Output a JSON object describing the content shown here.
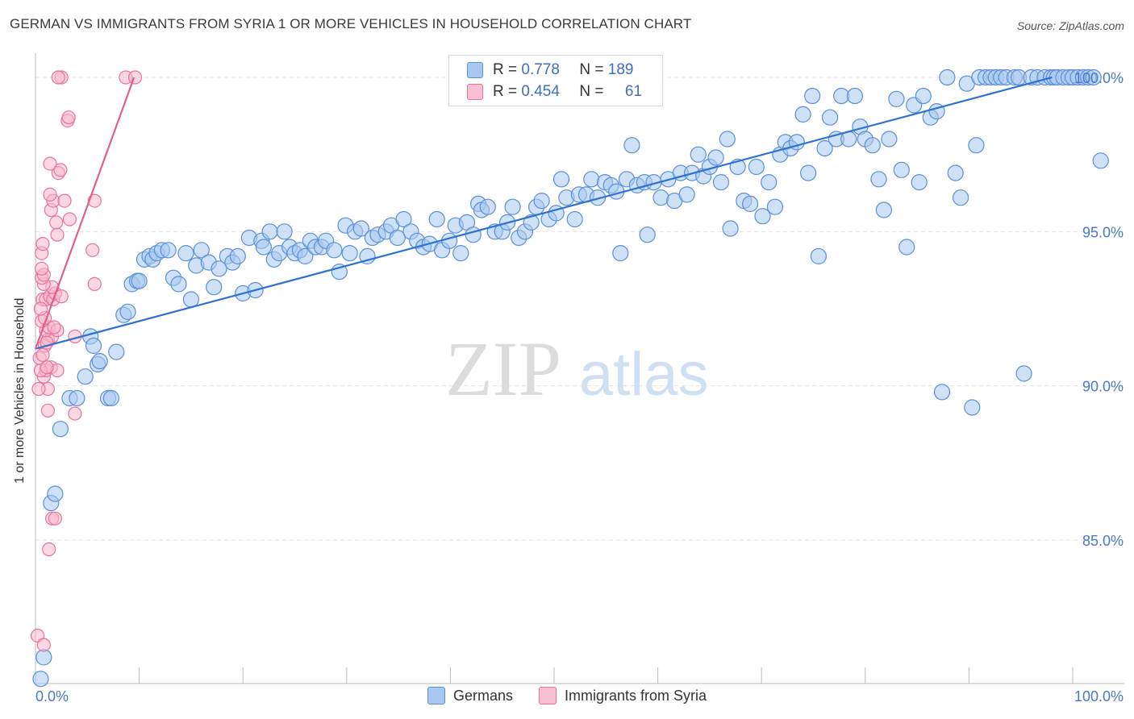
{
  "title": "GERMAN VS IMMIGRANTS FROM SYRIA 1 OR MORE VEHICLES IN HOUSEHOLD CORRELATION CHART",
  "source": "Source: ZipAtlas.com",
  "watermark": {
    "zip": "ZIP",
    "atlas": "atlas"
  },
  "legend": {
    "rows": [
      {
        "r_label": "R =",
        "r_value": "0.778",
        "n_label": "N =",
        "n_value": "189"
      },
      {
        "r_label": "R =",
        "r_value": "0.454",
        "n_label": "N =",
        "n_value": "61"
      }
    ]
  },
  "bottom_legend": {
    "germans": "Germans",
    "syria": "Immigrants from Syria"
  },
  "colors": {
    "germans_fill": "#a8c8f0",
    "germans_stroke": "#5b8fd8",
    "germans_line": "#2f72d0",
    "syria_fill": "#f8b8cc",
    "syria_stroke": "#e8739a",
    "syria_line": "#e0608a",
    "axis_text": "#4a78c8"
  },
  "chart_data": {
    "type": "scatter",
    "title": "GERMAN VS IMMIGRANTS FROM SYRIA 1 OR MORE VEHICLES IN HOUSEHOLD CORRELATION CHART",
    "xlabel": "",
    "ylabel": "1 or more Vehicles in Household",
    "xlim": [
      0,
      100
    ],
    "ylim": [
      80.5,
      100.7
    ],
    "x_tick_labels": [
      "0.0%",
      "100.0%"
    ],
    "y_ticks": [
      85,
      90,
      95,
      100
    ],
    "y_tick_labels": [
      "85.0%",
      "90.0%",
      "95.0%",
      "100.0%"
    ],
    "grid": true,
    "legend_position": "top-center",
    "series": [
      {
        "name": "Germans",
        "trend": {
          "x": [
            0,
            98
          ],
          "y": [
            91.2,
            100.0
          ]
        },
        "points": [
          [
            0.5,
            80.5
          ],
          [
            0.8,
            81.2
          ],
          [
            1.5,
            86.2
          ],
          [
            1.9,
            86.5
          ],
          [
            2.4,
            88.6
          ],
          [
            3.3,
            89.6
          ],
          [
            4,
            89.6
          ],
          [
            4.8,
            90.3
          ],
          [
            5.3,
            91.6
          ],
          [
            5.6,
            91.3
          ],
          [
            6,
            90.7
          ],
          [
            6.2,
            90.8
          ],
          [
            7,
            89.6
          ],
          [
            7.3,
            89.6
          ],
          [
            7.8,
            91.1
          ],
          [
            8.5,
            92.3
          ],
          [
            8.9,
            92.4
          ],
          [
            9.3,
            93.3
          ],
          [
            9.8,
            93.4
          ],
          [
            10,
            93.4
          ],
          [
            10.5,
            94.1
          ],
          [
            11,
            94.2
          ],
          [
            11.3,
            94.1
          ],
          [
            11.7,
            94.3
          ],
          [
            12.2,
            94.4
          ],
          [
            12.8,
            94.4
          ],
          [
            13.3,
            93.5
          ],
          [
            13.8,
            93.3
          ],
          [
            14.5,
            94.3
          ],
          [
            15,
            92.8
          ],
          [
            15.5,
            93.9
          ],
          [
            16,
            94.4
          ],
          [
            16.7,
            94.0
          ],
          [
            17.2,
            93.2
          ],
          [
            17.7,
            93.8
          ],
          [
            18.5,
            94.2
          ],
          [
            19,
            94.0
          ],
          [
            19.5,
            94.2
          ],
          [
            20,
            93.0
          ],
          [
            20.6,
            94.8
          ],
          [
            21.2,
            93.1
          ],
          [
            21.8,
            94.7
          ],
          [
            22,
            94.5
          ],
          [
            22.6,
            95.0
          ],
          [
            23,
            94.1
          ],
          [
            23.5,
            94.3
          ],
          [
            24,
            95.0
          ],
          [
            24.5,
            94.5
          ],
          [
            25,
            94.3
          ],
          [
            25.5,
            94.4
          ],
          [
            26,
            94.2
          ],
          [
            26.5,
            94.7
          ],
          [
            27,
            94.5
          ],
          [
            27.6,
            94.5
          ],
          [
            28,
            94.7
          ],
          [
            28.8,
            94.4
          ],
          [
            29.3,
            93.7
          ],
          [
            29.9,
            95.2
          ],
          [
            30.3,
            94.3
          ],
          [
            30.8,
            95.0
          ],
          [
            31.4,
            95.1
          ],
          [
            32,
            94.2
          ],
          [
            32.5,
            94.8
          ],
          [
            33,
            94.9
          ],
          [
            33.8,
            95.0
          ],
          [
            34.3,
            95.2
          ],
          [
            34.9,
            94.8
          ],
          [
            35.5,
            95.4
          ],
          [
            36.2,
            95.0
          ],
          [
            36.8,
            94.7
          ],
          [
            37.4,
            94.5
          ],
          [
            38,
            94.6
          ],
          [
            38.7,
            95.4
          ],
          [
            39.2,
            94.4
          ],
          [
            39.9,
            94.7
          ],
          [
            40.5,
            95.2
          ],
          [
            41,
            94.3
          ],
          [
            41.6,
            95.3
          ],
          [
            42.2,
            94.9
          ],
          [
            42.7,
            95.9
          ],
          [
            43,
            95.7
          ],
          [
            43.6,
            95.8
          ],
          [
            44.3,
            95.0
          ],
          [
            45,
            95.0
          ],
          [
            45.5,
            95.3
          ],
          [
            46,
            95.8
          ],
          [
            46.6,
            94.8
          ],
          [
            47.2,
            95.0
          ],
          [
            47.8,
            95.3
          ],
          [
            48.3,
            95.8
          ],
          [
            48.8,
            96.0
          ],
          [
            49.5,
            95.4
          ],
          [
            50.2,
            95.6
          ],
          [
            50.7,
            96.7
          ],
          [
            51.2,
            96.1
          ],
          [
            52,
            95.4
          ],
          [
            52.4,
            96.2
          ],
          [
            53.1,
            96.2
          ],
          [
            53.6,
            96.7
          ],
          [
            54.2,
            96.1
          ],
          [
            54.9,
            96.6
          ],
          [
            55.5,
            96.5
          ],
          [
            56,
            96.3
          ],
          [
            56.4,
            94.3
          ],
          [
            57,
            96.7
          ],
          [
            57.5,
            97.8
          ],
          [
            58,
            96.5
          ],
          [
            58.7,
            96.6
          ],
          [
            59,
            94.9
          ],
          [
            59.6,
            96.6
          ],
          [
            60.3,
            96.1
          ],
          [
            61,
            96.7
          ],
          [
            61.6,
            96.0
          ],
          [
            62.2,
            96.9
          ],
          [
            62.8,
            96.2
          ],
          [
            63.3,
            96.9
          ],
          [
            63.9,
            97.5
          ],
          [
            64.4,
            96.8
          ],
          [
            65,
            97.1
          ],
          [
            65.6,
            97.4
          ],
          [
            66.1,
            96.6
          ],
          [
            66.7,
            98.0
          ],
          [
            67,
            95.1
          ],
          [
            67.7,
            97.1
          ],
          [
            68.3,
            96.0
          ],
          [
            68.9,
            95.9
          ],
          [
            69.5,
            97.1
          ],
          [
            70.1,
            95.5
          ],
          [
            70.7,
            96.6
          ],
          [
            71.3,
            95.8
          ],
          [
            71.8,
            97.5
          ],
          [
            72.3,
            97.9
          ],
          [
            72.8,
            97.7
          ],
          [
            73.4,
            97.9
          ],
          [
            74,
            98.8
          ],
          [
            74.5,
            96.9
          ],
          [
            74.9,
            99.4
          ],
          [
            75.5,
            94.2
          ],
          [
            76.1,
            97.7
          ],
          [
            76.6,
            98.7
          ],
          [
            77.2,
            98.0
          ],
          [
            77.7,
            99.4
          ],
          [
            78.4,
            98.0
          ],
          [
            79,
            99.4
          ],
          [
            79.5,
            98.4
          ],
          [
            80,
            98.0
          ],
          [
            80.7,
            97.8
          ],
          [
            81.3,
            96.7
          ],
          [
            81.8,
            95.7
          ],
          [
            82.3,
            98.0
          ],
          [
            83,
            99.3
          ],
          [
            83.5,
            97.0
          ],
          [
            84,
            94.5
          ],
          [
            84.7,
            99.1
          ],
          [
            85.2,
            96.6
          ],
          [
            85.6,
            99.4
          ],
          [
            86.3,
            98.7
          ],
          [
            86.9,
            98.9
          ],
          [
            87.4,
            89.8
          ],
          [
            87.9,
            100.0
          ],
          [
            88.7,
            96.9
          ],
          [
            89.2,
            96.1
          ],
          [
            89.8,
            99.8
          ],
          [
            90.3,
            89.3
          ],
          [
            90.7,
            97.8
          ],
          [
            91,
            100.0
          ],
          [
            91.6,
            100.0
          ],
          [
            92.1,
            100.0
          ],
          [
            92.6,
            100.0
          ],
          [
            93.1,
            100.0
          ],
          [
            93.6,
            100.0
          ],
          [
            94.4,
            100.0
          ],
          [
            94.8,
            100.0
          ],
          [
            95.3,
            90.4
          ],
          [
            96,
            100.0
          ],
          [
            96.6,
            100.0
          ],
          [
            97.3,
            100.0
          ],
          [
            97.9,
            100.0
          ],
          [
            98.2,
            100.0
          ],
          [
            98.5,
            100.0
          ],
          [
            99.1,
            100.0
          ],
          [
            99.6,
            100.0
          ],
          [
            100,
            100.0
          ],
          [
            100.5,
            100.0
          ],
          [
            101,
            100.0
          ],
          [
            101.5,
            100.0
          ],
          [
            102,
            100.0
          ],
          [
            102.7,
            97.3
          ]
        ]
      },
      {
        "name": "Immigrants from Syria",
        "trend": {
          "x": [
            0,
            9.5
          ],
          "y": [
            91.2,
            100.0
          ]
        },
        "points": [
          [
            0.2,
            81.9
          ],
          [
            0.8,
            81.6
          ],
          [
            1.3,
            84.7
          ],
          [
            1.6,
            85.7
          ],
          [
            1.9,
            85.7
          ],
          [
            1.2,
            89.2
          ],
          [
            1.2,
            89.9
          ],
          [
            0.3,
            89.9
          ],
          [
            0.8,
            90.3
          ],
          [
            1.0,
            90.5
          ],
          [
            1.5,
            90.6
          ],
          [
            2.1,
            90.5
          ],
          [
            0.5,
            90.5
          ],
          [
            0.4,
            90.9
          ],
          [
            0.9,
            91.3
          ],
          [
            1.2,
            91.5
          ],
          [
            1.6,
            91.6
          ],
          [
            1.0,
            91.8
          ],
          [
            1.3,
            91.9
          ],
          [
            0.6,
            92.1
          ],
          [
            0.9,
            92.2
          ],
          [
            0.7,
            92.8
          ],
          [
            1.0,
            92.8
          ],
          [
            1.4,
            92.9
          ],
          [
            1.7,
            92.8
          ],
          [
            1.9,
            93.0
          ],
          [
            1.6,
            93.2
          ],
          [
            0.8,
            93.3
          ],
          [
            0.6,
            93.5
          ],
          [
            0.8,
            93.6
          ],
          [
            0.6,
            93.8
          ],
          [
            0.6,
            94.3
          ],
          [
            0.7,
            94.6
          ],
          [
            2.1,
            94.9
          ],
          [
            2.0,
            95.3
          ],
          [
            3.3,
            95.4
          ],
          [
            1.5,
            95.7
          ],
          [
            1.7,
            96.0
          ],
          [
            1.4,
            96.2
          ],
          [
            2.8,
            96.0
          ],
          [
            5.7,
            96.0
          ],
          [
            2.2,
            96.9
          ],
          [
            2.4,
            97.0
          ],
          [
            1.4,
            97.2
          ],
          [
            3.1,
            98.6
          ],
          [
            3.2,
            98.7
          ],
          [
            2.5,
            100.0
          ],
          [
            2.2,
            100.0
          ],
          [
            8.7,
            100.0
          ],
          [
            9.6,
            100.0
          ],
          [
            3.8,
            91.6
          ],
          [
            3.8,
            89.1
          ],
          [
            5.5,
            94.4
          ],
          [
            5.7,
            93.3
          ],
          [
            2.1,
            91.8
          ],
          [
            2.5,
            92.9
          ],
          [
            1.1,
            90.6
          ],
          [
            1.8,
            91.9
          ],
          [
            0.5,
            92.5
          ],
          [
            0.7,
            91.0
          ],
          [
            1.1,
            91.4
          ]
        ]
      }
    ]
  }
}
